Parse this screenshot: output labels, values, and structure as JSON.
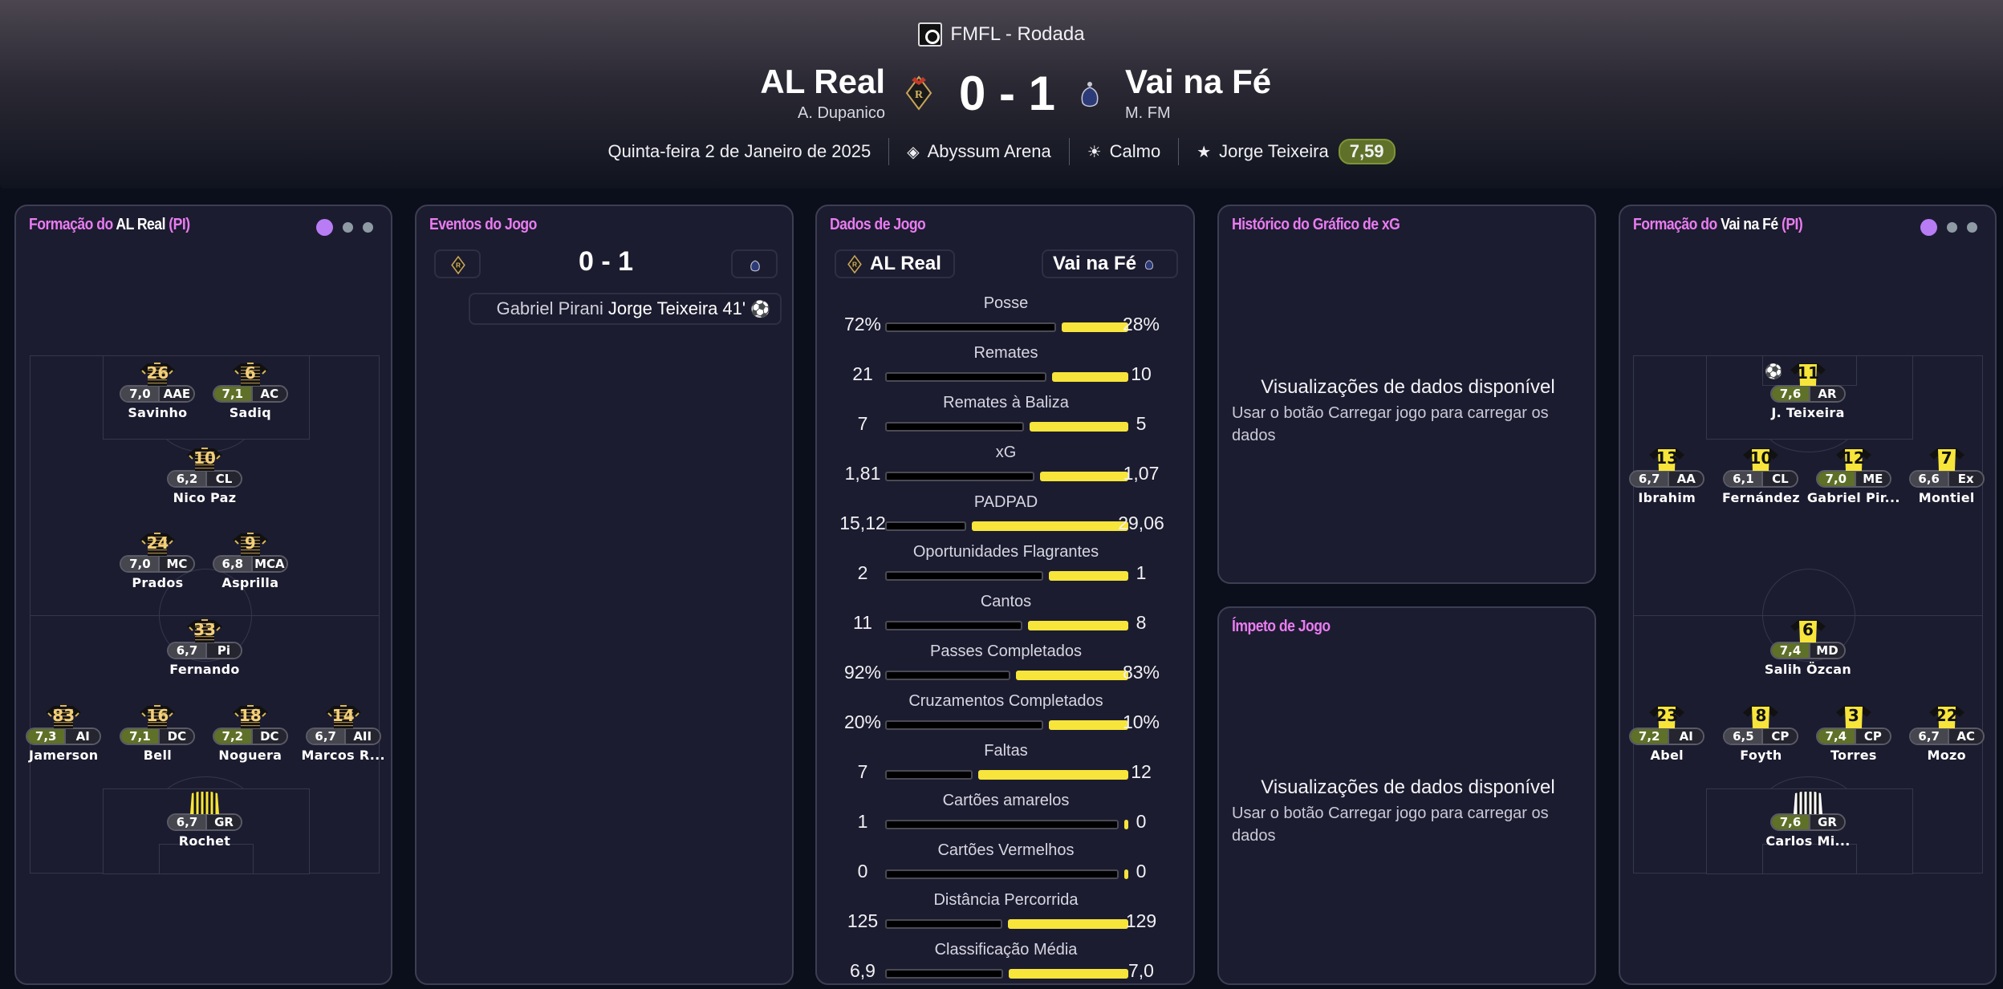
{
  "header": {
    "competition": "FMFL - Rodada",
    "home": {
      "name": "AL Real",
      "manager": "A. Dupanico"
    },
    "away": {
      "name": "Vai na Fé",
      "manager": "M. FM"
    },
    "score": "0 - 1",
    "date": "Quinta-feira 2 de Janeiro de 2025",
    "stadium": "Abyssum Arena",
    "weather": "Calmo",
    "potm": "Jorge Teixeira",
    "potm_rating": "7,59"
  },
  "colors": {
    "accent": "#e97cf0",
    "home_bar": "#000000",
    "away_bar": "#f7e53b",
    "good_rating": "#5f7128",
    "rating": "#45464e"
  },
  "home_formation": {
    "title_prefix": "Formação do",
    "team": "AL Real",
    "suffix": "(PI)",
    "players": [
      {
        "num": "26",
        "rating": "7,0",
        "pos": "AAE",
        "name": "Savinho",
        "good": false
      },
      {
        "num": "6",
        "rating": "7,1",
        "pos": "AC",
        "name": "Sadiq",
        "good": true
      },
      {
        "num": "10",
        "rating": "6,2",
        "pos": "CL",
        "name": "Nico Paz",
        "good": false
      },
      {
        "num": "24",
        "rating": "7,0",
        "pos": "MC",
        "name": "Prados",
        "good": false
      },
      {
        "num": "9",
        "rating": "6,8",
        "pos": "MCA",
        "name": "Asprilla",
        "good": false
      },
      {
        "num": "33",
        "rating": "6,7",
        "pos": "Pi",
        "name": "Fernando",
        "good": false
      },
      {
        "num": "83",
        "rating": "7,3",
        "pos": "AI",
        "name": "Jamerson",
        "good": true
      },
      {
        "num": "16",
        "rating": "7,1",
        "pos": "DC",
        "name": "Bell",
        "good": true
      },
      {
        "num": "18",
        "rating": "7,2",
        "pos": "DC",
        "name": "Noguera",
        "good": true
      },
      {
        "num": "14",
        "rating": "6,7",
        "pos": "AII",
        "name": "Marcos R...",
        "good": false
      },
      {
        "num": "",
        "rating": "6,7",
        "pos": "GR",
        "name": "Rochet",
        "good": false,
        "gk": true
      }
    ]
  },
  "away_formation": {
    "title_prefix": "Formação do",
    "team": "Vai na Fé",
    "suffix": "(PI)",
    "players": [
      {
        "num": "11",
        "rating": "7,6",
        "pos": "AR",
        "name": "J. Teixeira",
        "good": true,
        "goal": true
      },
      {
        "num": "13",
        "rating": "6,7",
        "pos": "AA",
        "name": "Ibrahim",
        "good": false
      },
      {
        "num": "10",
        "rating": "6,1",
        "pos": "CL",
        "name": "Fernández",
        "good": false
      },
      {
        "num": "12",
        "rating": "7,0",
        "pos": "ME",
        "name": "Gabriel Pir...",
        "good": true
      },
      {
        "num": "7",
        "rating": "6,6",
        "pos": "Ex",
        "name": "Montiel",
        "good": false
      },
      {
        "num": "6",
        "rating": "7,4",
        "pos": "MD",
        "name": "Salih Özcan",
        "good": true
      },
      {
        "num": "23",
        "rating": "7,2",
        "pos": "AI",
        "name": "Abel",
        "good": true
      },
      {
        "num": "8",
        "rating": "6,5",
        "pos": "CP",
        "name": "Foyth",
        "good": false
      },
      {
        "num": "3",
        "rating": "7,4",
        "pos": "CP",
        "name": "Torres",
        "good": true
      },
      {
        "num": "22",
        "rating": "6,7",
        "pos": "AC",
        "name": "Mozo",
        "good": false
      },
      {
        "num": "",
        "rating": "7,6",
        "pos": "GR",
        "name": "Carlos Mi...",
        "good": true,
        "gk": true
      }
    ]
  },
  "events": {
    "title": "Eventos do Jogo",
    "score": "0 - 1",
    "items": [
      {
        "assist": "Gabriel Pirani",
        "scorer": "Jorge Teixeira",
        "minute": "41'",
        "icon": "football-icon"
      }
    ]
  },
  "stats": {
    "title": "Dados de Jogo",
    "home": "AL Real",
    "away": "Vai na Fé",
    "rows": [
      {
        "label": "Posse",
        "home": "72%",
        "away": "28%"
      },
      {
        "label": "Remates",
        "home": "21",
        "away": "10"
      },
      {
        "label": "Remates à Baliza",
        "home": "7",
        "away": "5"
      },
      {
        "label": "xG",
        "home": "1,81",
        "away": "1,07"
      },
      {
        "label": "PADPAD",
        "home": "15,12",
        "away": "29,06"
      },
      {
        "label": "Oportunidades Flagrantes",
        "home": "2",
        "away": "1"
      },
      {
        "label": "Cantos",
        "home": "11",
        "away": "8"
      },
      {
        "label": "Passes Completados",
        "home": "92%",
        "away": "83%"
      },
      {
        "label": "Cruzamentos Completados",
        "home": "20%",
        "away": "10%"
      },
      {
        "label": "Faltas",
        "home": "7",
        "away": "12"
      },
      {
        "label": "Cartões amarelos",
        "home": "1",
        "away": "0"
      },
      {
        "label": "Cartões Vermelhos",
        "home": "0",
        "away": "0"
      },
      {
        "label": "Distância Percorrida",
        "home": "125",
        "away": "129"
      },
      {
        "label": "Classificação Média",
        "home": "6,9",
        "away": "7,0"
      }
    ]
  },
  "xg_history": {
    "title": "Histórico do Gráfico de xG",
    "empty_title": "Visualizações de dados disponível",
    "empty_text": "Usar o botão Carregar jogo para carregar os dados"
  },
  "momentum": {
    "title": "Ímpeto de Jogo",
    "empty_title": "Visualizações de dados disponível",
    "empty_text": "Usar o botão Carregar jogo para carregar os dados"
  }
}
